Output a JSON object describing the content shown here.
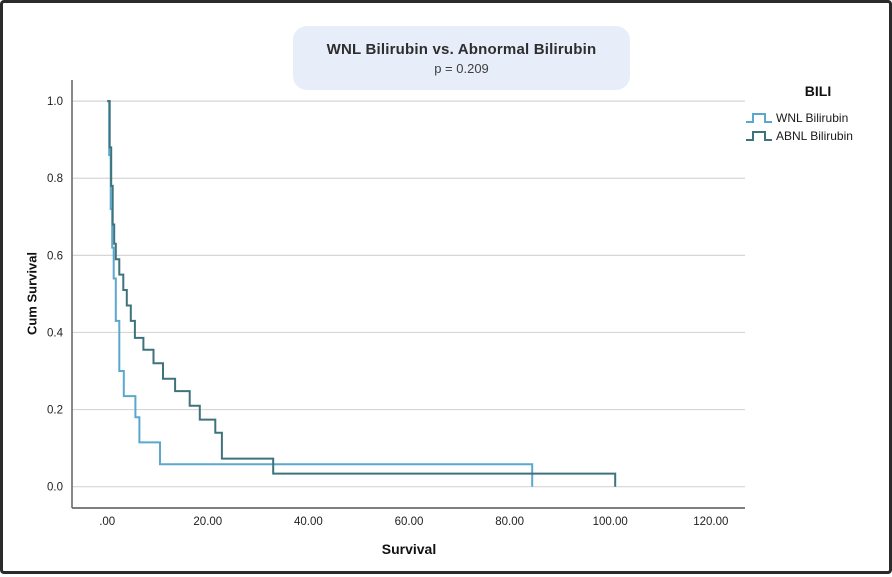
{
  "figure": {
    "title": "WNL Bilirubin vs. Abnormal Bilirubin",
    "p_value": "p = 0.209",
    "title_box_color": "#E8EDFA",
    "background_color": "#FFFFFF",
    "border_color": "#2B2B2B"
  },
  "legend": {
    "title": "BILI",
    "position": "right",
    "entries": [
      {
        "label": "WNL Bilirubin",
        "color": "#5BA7CE"
      },
      {
        "label": "ABNL Bilirubin",
        "color": "#3E737C"
      }
    ]
  },
  "chart_data": {
    "type": "line",
    "subtype": "kaplan-meier-step",
    "title": "WNL Bilirubin vs. Abnormal Bilirubin",
    "annotation": "p = 0.209",
    "xlabel": "Survival",
    "ylabel": "Cum Survival",
    "xlim": [
      0,
      120
    ],
    "ylim": [
      0,
      1.0
    ],
    "xticks": [
      0,
      20,
      40,
      60,
      80,
      100,
      120
    ],
    "xtick_labels": [
      ".00",
      "20.00",
      "40.00",
      "60.00",
      "80.00",
      "100.00",
      "120.00"
    ],
    "yticks": [
      0.0,
      0.2,
      0.4,
      0.6,
      0.8,
      1.0
    ],
    "ytick_labels": [
      "0.0",
      "0.2",
      "0.4",
      "0.6",
      "0.8",
      "1.0"
    ],
    "grid": "horizontal",
    "grid_color": "#D6D6D6",
    "axis_color": "#6B6B6B",
    "tick_label_color": "#1F1F1F",
    "legend_position": "right",
    "series": [
      {
        "name": "WNL Bilirubin",
        "color": "#5BA7CE",
        "steps": [
          [
            0,
            1.0
          ],
          [
            0.4,
            0.86
          ],
          [
            0.7,
            0.72
          ],
          [
            1.0,
            0.62
          ],
          [
            1.3,
            0.54
          ],
          [
            1.7,
            0.43
          ],
          [
            2.4,
            0.3
          ],
          [
            3.3,
            0.235
          ],
          [
            5.6,
            0.18
          ],
          [
            6.4,
            0.115
          ],
          [
            10.5,
            0.058
          ],
          [
            84.5,
            0
          ]
        ]
      },
      {
        "name": "ABNL Bilirubin",
        "color": "#3E737C",
        "steps": [
          [
            0,
            1.0
          ],
          [
            0.5,
            0.88
          ],
          [
            0.8,
            0.78
          ],
          [
            1.1,
            0.68
          ],
          [
            1.4,
            0.63
          ],
          [
            1.7,
            0.59
          ],
          [
            2.4,
            0.55
          ],
          [
            3.2,
            0.51
          ],
          [
            3.9,
            0.47
          ],
          [
            4.7,
            0.43
          ],
          [
            5.5,
            0.386
          ],
          [
            7.2,
            0.355
          ],
          [
            9.2,
            0.32
          ],
          [
            11.1,
            0.28
          ],
          [
            13.5,
            0.248
          ],
          [
            16.4,
            0.21
          ],
          [
            18.4,
            0.174
          ],
          [
            21.5,
            0.14
          ],
          [
            22.8,
            0.073
          ],
          [
            33,
            0.034
          ],
          [
            101,
            0
          ]
        ]
      }
    ]
  }
}
